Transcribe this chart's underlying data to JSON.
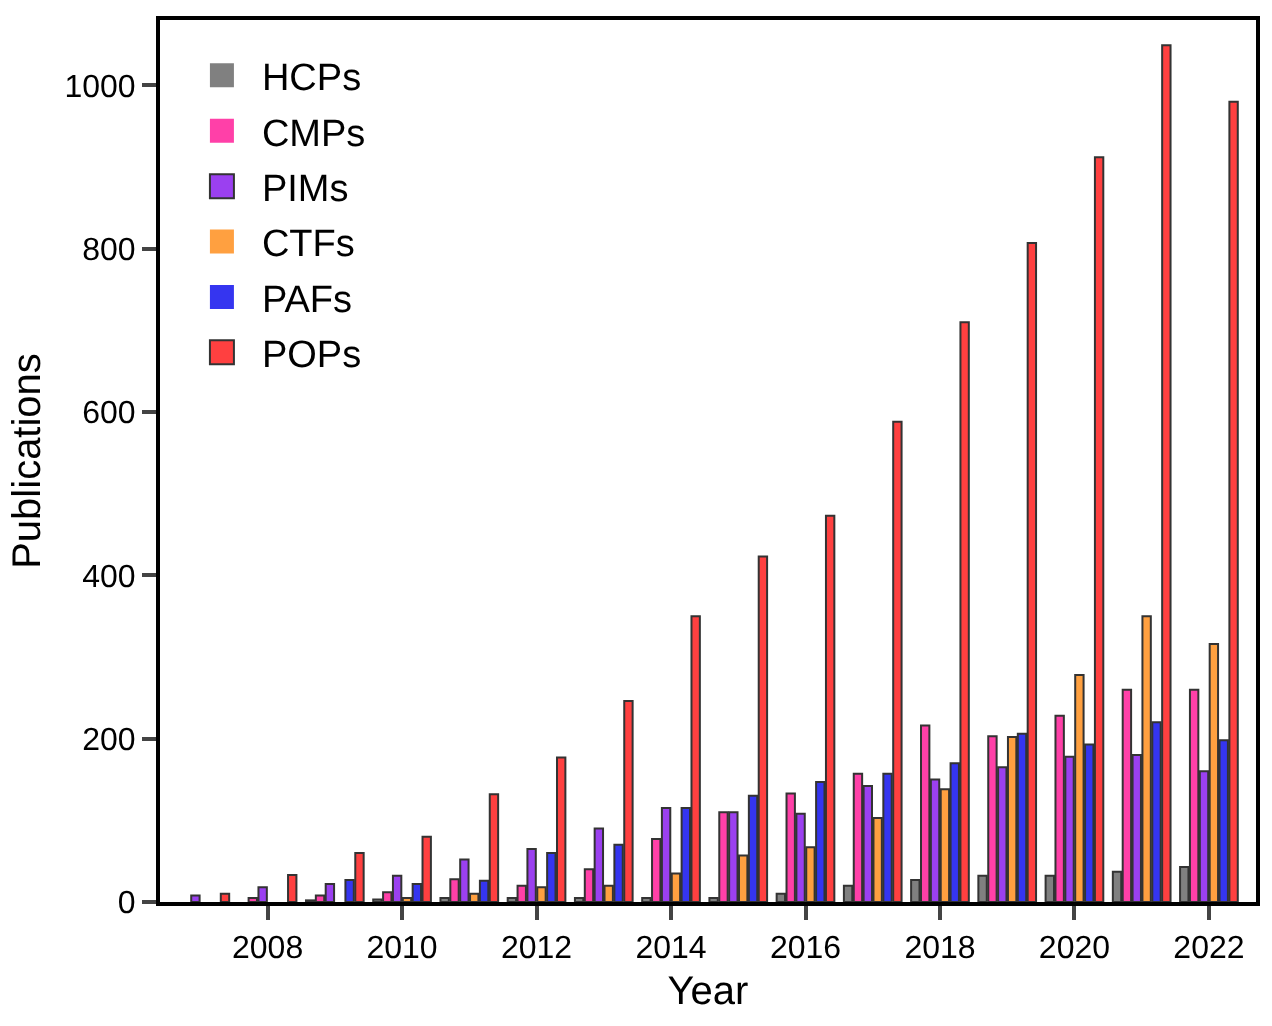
{
  "chart_data": {
    "type": "bar",
    "xlabel": "Year",
    "ylabel": "Publications",
    "x": [
      2007,
      2008,
      2009,
      2010,
      2011,
      2012,
      2013,
      2014,
      2015,
      2016,
      2017,
      2018,
      2019,
      2020,
      2021,
      2022
    ],
    "series": [
      {
        "name": "HCPs",
        "color": "#808080",
        "values": [
          0,
          0,
          2,
          3,
          5,
          5,
          5,
          5,
          5,
          10,
          20,
          27,
          32,
          32,
          37,
          43
        ]
      },
      {
        "name": "CMPs",
        "color": "#ff40a8",
        "values": [
          0,
          5,
          8,
          12,
          28,
          20,
          40,
          77,
          110,
          133,
          157,
          216,
          203,
          228,
          260,
          260
        ]
      },
      {
        "name": "PIMs",
        "color": "#9b40f0",
        "values": [
          8,
          18,
          22,
          32,
          52,
          65,
          90,
          115,
          110,
          108,
          142,
          150,
          165,
          178,
          180,
          160
        ]
      },
      {
        "name": "CTFs",
        "color": "#ffa040",
        "values": [
          0,
          0,
          0,
          5,
          10,
          18,
          20,
          35,
          57,
          67,
          103,
          138,
          202,
          278,
          350,
          316
        ]
      },
      {
        "name": "PAFs",
        "color": "#3535f0",
        "values": [
          0,
          0,
          27,
          22,
          26,
          60,
          70,
          115,
          130,
          147,
          157,
          170,
          206,
          193,
          220,
          198
        ]
      },
      {
        "name": "POPs",
        "color": "#ff4040",
        "values": [
          10,
          33,
          60,
          80,
          132,
          177,
          246,
          350,
          423,
          473,
          588,
          710,
          807,
          912,
          1049,
          980
        ]
      }
    ],
    "xlim": [
      2006.4,
      2022.7
    ],
    "xticks": [
      2008,
      2010,
      2012,
      2014,
      2016,
      2018,
      2020,
      2022
    ],
    "ylim": [
      0,
      1080
    ],
    "yticks": [
      0,
      200,
      400,
      600,
      800,
      1000
    ],
    "grid": false,
    "legend": "top left"
  }
}
